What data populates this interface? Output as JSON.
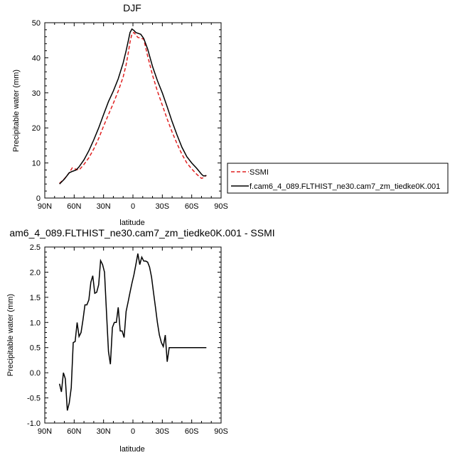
{
  "chart_data": [
    {
      "type": "line",
      "title": "DJF",
      "xlabel": "latitude",
      "ylabel": "Precipitable water (mm)",
      "xlim": [
        90,
        -90
      ],
      "ylim": [
        0,
        50
      ],
      "x_ticks": [
        {
          "value": 90,
          "label": "90N"
        },
        {
          "value": 60,
          "label": "60N"
        },
        {
          "value": 30,
          "label": "30N"
        },
        {
          "value": 0,
          "label": "0"
        },
        {
          "value": -30,
          "label": "30S"
        },
        {
          "value": -60,
          "label": "60S"
        },
        {
          "value": -90,
          "label": "90S"
        }
      ],
      "y_ticks": [
        0,
        10,
        20,
        30,
        40,
        50
      ],
      "legend": {
        "placement": "right"
      },
      "series": [
        {
          "name": "SSMI",
          "color": "#e02020",
          "dash": true,
          "x": [
            75,
            70,
            65,
            62,
            58,
            55,
            50,
            45,
            40,
            35,
            30,
            25,
            20,
            15,
            10,
            7,
            5,
            3,
            1,
            -1,
            -3,
            -5,
            -8,
            -11,
            -15,
            -20,
            -25,
            -30,
            -35,
            -40,
            -45,
            -50,
            -55,
            -60,
            -65,
            -70,
            -72,
            -75
          ],
          "y": [
            4.2,
            5.5,
            7.2,
            8.6,
            8.2,
            8.0,
            9.6,
            11.5,
            14.0,
            17.0,
            20.5,
            23.8,
            27.0,
            30.5,
            34.5,
            38.0,
            41.0,
            44.5,
            46.8,
            47.2,
            46.5,
            45.8,
            45.6,
            45.3,
            40.5,
            35.0,
            30.5,
            26.5,
            22.5,
            18.8,
            15.5,
            12.5,
            10.0,
            8.3,
            6.8,
            5.6,
            5.8,
            6.5
          ]
        },
        {
          "name": "f.cam6_4_089.FLTHIST_ne30.cam7_zm_tiedke0K.001",
          "color": "#000000",
          "dash": false,
          "x": [
            75,
            70,
            65,
            62,
            58,
            55,
            50,
            45,
            40,
            35,
            30,
            25,
            20,
            15,
            10,
            7,
            5,
            3,
            1,
            -1,
            -3,
            -5,
            -8,
            -11,
            -15,
            -20,
            -25,
            -30,
            -35,
            -40,
            -45,
            -50,
            -55,
            -60,
            -65,
            -70,
            -72,
            -75
          ],
          "y": [
            4.0,
            5.4,
            7.2,
            7.6,
            8.0,
            8.9,
            10.9,
            13.5,
            16.6,
            20.0,
            23.8,
            27.5,
            30.5,
            34.0,
            38.5,
            42.0,
            44.5,
            47.2,
            48.2,
            47.8,
            47.2,
            47.0,
            46.7,
            45.5,
            42.5,
            37.5,
            33.5,
            30.0,
            26.0,
            21.8,
            18.0,
            14.5,
            11.8,
            10.0,
            8.5,
            6.8,
            6.3,
            6.4
          ]
        }
      ]
    },
    {
      "type": "line",
      "title": "am6_4_089.FLTHIST_ne30.cam7_zm_tiedke0K.001 - SSMI",
      "xlabel": "latitude",
      "ylabel": "Precipitable water (mm)",
      "xlim": [
        90,
        -90
      ],
      "ylim": [
        -1.0,
        2.5
      ],
      "x_ticks": [
        {
          "value": 90,
          "label": "90N"
        },
        {
          "value": 60,
          "label": "60N"
        },
        {
          "value": 30,
          "label": "30N"
        },
        {
          "value": 0,
          "label": "0"
        },
        {
          "value": -30,
          "label": "30S"
        },
        {
          "value": -60,
          "label": "60S"
        },
        {
          "value": -90,
          "label": "90S"
        }
      ],
      "y_ticks": [
        {
          "value": -1.0,
          "label": "-1.0"
        },
        {
          "value": -0.5,
          "label": "-0.5"
        },
        {
          "value": 0.0,
          "label": "0.0"
        },
        {
          "value": 0.5,
          "label": "0.5"
        },
        {
          "value": 1.0,
          "label": "1.0"
        },
        {
          "value": 1.5,
          "label": "1.5"
        },
        {
          "value": 2.0,
          "label": "2.0"
        },
        {
          "value": 2.5,
          "label": "2.5"
        }
      ],
      "series": [
        {
          "color": "#000000",
          "dash": false,
          "x": [
            75,
            73,
            71,
            69,
            67,
            65,
            63,
            61,
            59,
            57,
            55,
            53,
            51,
            49,
            47,
            45,
            43,
            41,
            39,
            37,
            35,
            33,
            31,
            29,
            27,
            25,
            23,
            21,
            19,
            17,
            15,
            13,
            11,
            9,
            7,
            5,
            3,
            1,
            -1,
            -3,
            -5,
            -7,
            -9,
            -11,
            -13,
            -15,
            -17,
            -19,
            -21,
            -23,
            -25,
            -27,
            -29,
            -31,
            -33,
            -35,
            -37,
            -39,
            -41,
            -43,
            -45,
            -47,
            -49,
            -51,
            -53,
            -55,
            -57,
            -59,
            -61,
            -63,
            -65,
            -67,
            -69,
            -71,
            -73,
            -75
          ],
          "y": [
            -0.22,
            -0.38,
            0.0,
            -0.12,
            -0.75,
            -0.6,
            -0.3,
            0.6,
            0.62,
            1.0,
            0.72,
            0.8,
            1.05,
            1.35,
            1.35,
            1.45,
            1.8,
            1.93,
            1.58,
            1.6,
            1.75,
            2.23,
            2.15,
            2.0,
            1.2,
            0.42,
            0.17,
            0.9,
            1.0,
            1.0,
            1.3,
            0.83,
            0.83,
            0.7,
            1.22,
            1.4,
            1.6,
            1.78,
            1.95,
            2.15,
            2.37,
            2.15,
            2.3,
            2.22,
            2.22,
            2.2,
            2.1,
            1.9,
            1.6,
            1.3,
            1.0,
            0.75,
            0.6,
            0.52,
            0.75,
            0.22,
            0.5,
            0.5,
            0.5,
            0.5,
            0.5,
            0.5,
            0.5,
            0.5,
            0.5,
            0.5,
            0.5,
            0.5,
            0.5,
            0.5,
            0.5,
            0.5,
            0.5,
            0.5,
            0.5,
            0.5
          ]
        }
      ]
    }
  ]
}
